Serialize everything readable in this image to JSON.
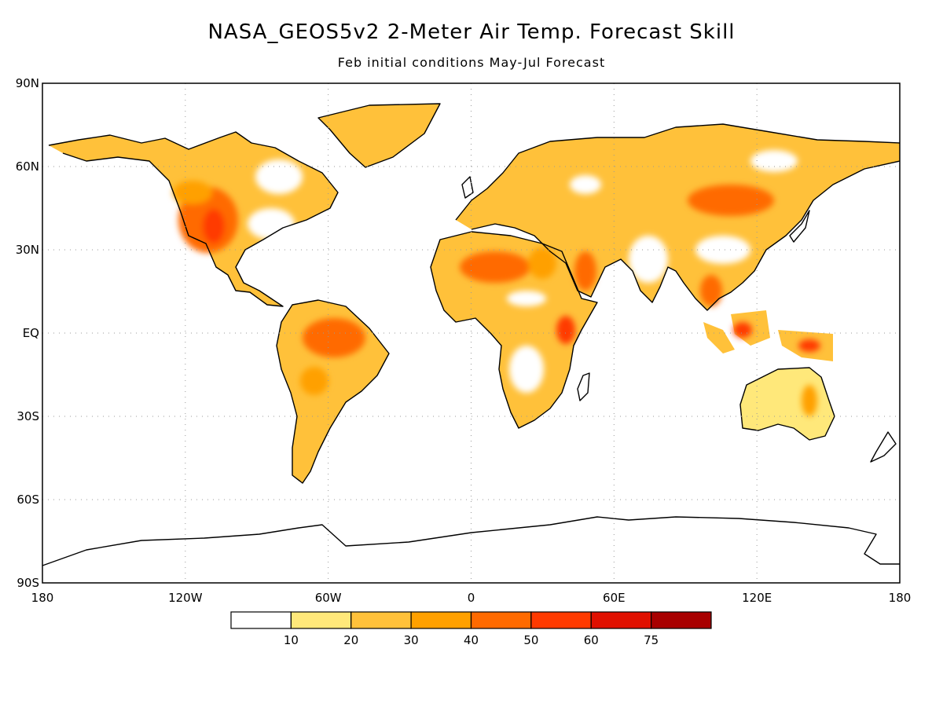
{
  "title": "NASA_GEOS5v2 2-Meter Air Temp. Forecast Skill",
  "subtitle": "Feb initial conditions  May-Jul Forecast",
  "lat_labels": [
    "90N",
    "60N",
    "30N",
    "EQ",
    "30S",
    "60S",
    "90S"
  ],
  "lon_labels": [
    "180",
    "120W",
    "60W",
    "0",
    "60E",
    "120E",
    "180"
  ],
  "colorbar": {
    "labels": [
      "10",
      "20",
      "30",
      "40",
      "50",
      "60",
      "75"
    ],
    "colors": [
      "#ffffff",
      "#ffe87a",
      "#ffc13a",
      "#ffa000",
      "#ff6a00",
      "#ff3a00",
      "#e01000",
      "#a80000"
    ]
  },
  "chart_data": {
    "type": "heatmap",
    "title": "NASA_GEOS5v2 2-Meter Air Temp. Forecast Skill",
    "subtitle": "Feb initial conditions  May-Jul Forecast",
    "projection": "cylindrical equidistant",
    "xlim": [
      -180,
      180
    ],
    "ylim": [
      -90,
      90
    ],
    "x_ticks": [
      -180,
      -120,
      -60,
      0,
      60,
      120,
      180
    ],
    "y_ticks": [
      90,
      60,
      30,
      0,
      -30,
      -60,
      -90
    ],
    "grid": true,
    "levels": [
      10,
      20,
      30,
      40,
      50,
      60,
      75
    ],
    "regions": [
      {
        "lon": -111,
        "lat": 41,
        "level": 60
      },
      {
        "lon": -100,
        "lat": 48,
        "level": 50
      },
      {
        "lon": -60,
        "lat": -5,
        "level": 50
      },
      {
        "lon": -52,
        "lat": -18,
        "level": 40
      },
      {
        "lon": 15,
        "lat": 22,
        "level": 50
      },
      {
        "lon": 32,
        "lat": 18,
        "level": 50
      },
      {
        "lon": 45,
        "lat": 20,
        "level": 50
      },
      {
        "lon": 40,
        "lat": 2,
        "level": 60
      },
      {
        "lon": 95,
        "lat": 45,
        "level": 50
      },
      {
        "lon": 100,
        "lat": 18,
        "level": 50
      },
      {
        "lon": 113,
        "lat": 0,
        "level": 60
      },
      {
        "lon": 140,
        "lat": -5,
        "level": 60
      },
      {
        "lon": 135,
        "lat": -25,
        "level": 30
      },
      {
        "lon": -120,
        "lat": 60,
        "level": 20
      },
      {
        "lon": 60,
        "lat": 60,
        "level": 20
      },
      {
        "lon": 20,
        "lat": -20,
        "level": 20
      }
    ]
  }
}
